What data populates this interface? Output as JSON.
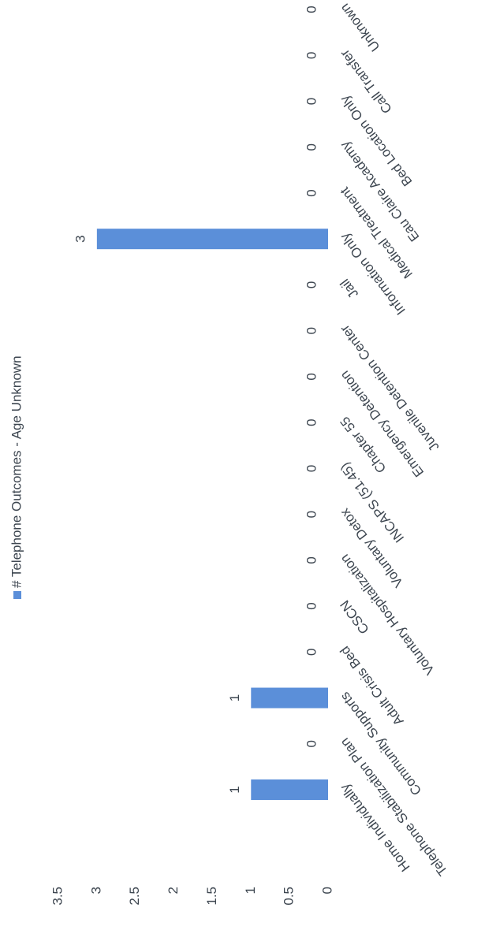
{
  "chart_data": {
    "type": "bar",
    "categories": [
      "Home Individually",
      "Telephone Stabilization Plan",
      "Community Supports",
      "Adult Crisis Bed",
      "CSCN",
      "Voluntary Hospitalization",
      "Voluntary Detox",
      "INCAPS (51.45)",
      "Chapter 55",
      "Emergency Detention",
      "Juvenile Detention Center",
      "Jail",
      "Information Only",
      "Medical Treatment",
      "Eau Claire Academy",
      "Bed Location Only",
      "Call Transfer",
      "Unknown"
    ],
    "series": [
      {
        "name": "# Telephone Outcomes - Age Unknown",
        "color": "#5b8fd9",
        "values": [
          1,
          0,
          1,
          0,
          0,
          0,
          0,
          0,
          0,
          0,
          0,
          0,
          3,
          0,
          0,
          0,
          0,
          0
        ]
      }
    ],
    "ylim": [
      0,
      3.5
    ],
    "yticks": [
      0,
      0.5,
      1,
      1.5,
      2,
      2.5,
      3,
      3.5
    ],
    "legend": "top"
  }
}
